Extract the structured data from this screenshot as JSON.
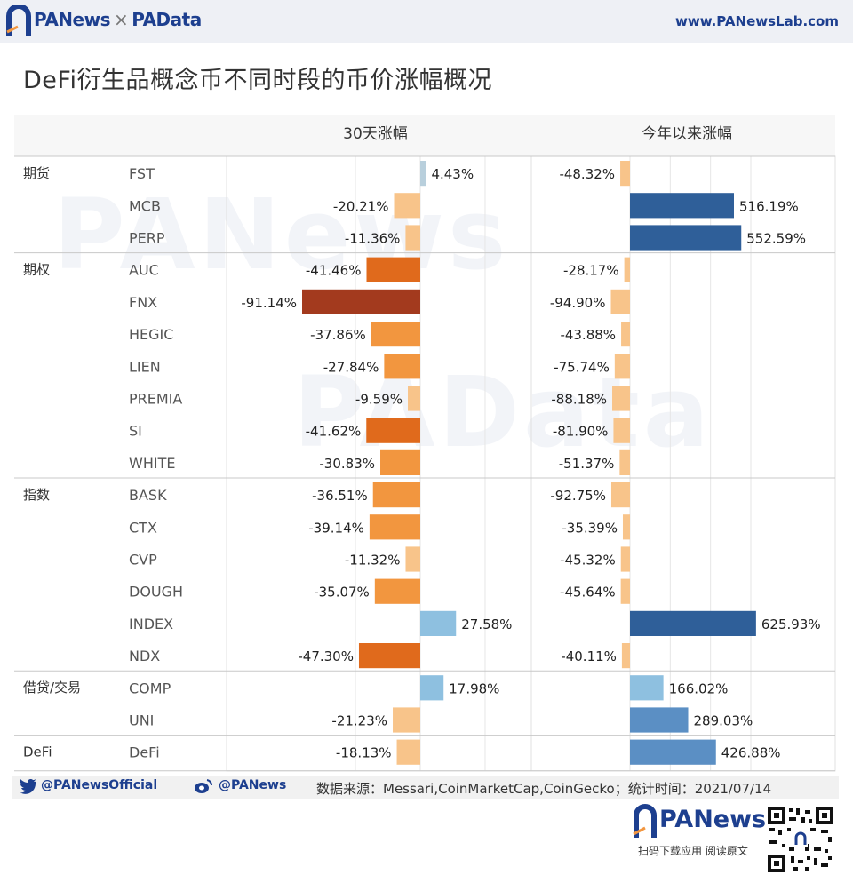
{
  "header": {
    "brand_left": "PANews",
    "brand_sep": "×",
    "brand_right": "PAData",
    "url": "www.PANewsLab.com"
  },
  "page_title": "DeFi衍生品概念币不同时段的币价涨幅概况",
  "chart_data": {
    "type": "bar",
    "orientation": "horizontal",
    "column_headers": [
      "30天涨幅",
      "今年以来涨幅"
    ],
    "groups": [
      {
        "name": "期货",
        "items": [
          {
            "token": "FST",
            "d30": 4.43,
            "ytd": -48.32
          },
          {
            "token": "MCB",
            "d30": -20.21,
            "ytd": 516.19
          },
          {
            "token": "PERP",
            "d30": -11.36,
            "ytd": 552.59
          }
        ]
      },
      {
        "name": "期权",
        "items": [
          {
            "token": "AUC",
            "d30": -41.46,
            "ytd": -28.17
          },
          {
            "token": "FNX",
            "d30": -91.14,
            "ytd": -94.9
          },
          {
            "token": "HEGIC",
            "d30": -37.86,
            "ytd": -43.88
          },
          {
            "token": "LIEN",
            "d30": -27.84,
            "ytd": -75.74
          },
          {
            "token": "PREMIA",
            "d30": -9.59,
            "ytd": -88.18
          },
          {
            "token": "SI",
            "d30": -41.62,
            "ytd": -81.9
          },
          {
            "token": "WHITE",
            "d30": -30.83,
            "ytd": -51.37
          }
        ]
      },
      {
        "name": "指数",
        "items": [
          {
            "token": "BASK",
            "d30": -36.51,
            "ytd": -92.75
          },
          {
            "token": "CTX",
            "d30": -39.14,
            "ytd": -35.39
          },
          {
            "token": "CVP",
            "d30": -11.32,
            "ytd": -45.32
          },
          {
            "token": "DOUGH",
            "d30": -35.07,
            "ytd": -45.64
          },
          {
            "token": "INDEX",
            "d30": 27.58,
            "ytd": 625.93
          },
          {
            "token": "NDX",
            "d30": -47.3,
            "ytd": -40.11
          }
        ]
      },
      {
        "name": "借贷/交易",
        "items": [
          {
            "token": "COMP",
            "d30": 17.98,
            "ytd": 166.02
          },
          {
            "token": "UNI",
            "d30": -21.23,
            "ytd": 289.03
          }
        ]
      },
      {
        "name": "DeFi",
        "items": [
          {
            "token": "DeFi",
            "d30": -18.13,
            "ytd": 426.88
          }
        ]
      }
    ],
    "d30_range": [
      -100,
      60
    ],
    "ytd_range": [
      -100,
      700
    ],
    "colors": {
      "neg_light": "#f8c48a",
      "neg_mid": "#f2963f",
      "neg_dark": "#e06a1c",
      "neg_deepest": "#a33a1e",
      "pos_light": "#8ec0e0",
      "pos_mid": "#5b8fc4",
      "pos_dark": "#2f5f99",
      "pos_small": "#b8cfdc"
    }
  },
  "footer": {
    "twitter": "@PANewsOfficial",
    "weibo": "@PANews",
    "source": "数据来源：Messari,CoinMarketCap,CoinGecko；统计时间：2021/07/14"
  },
  "bottom_brand": {
    "name": "PANews",
    "caption": "扫码下载应用  阅读原文"
  },
  "watermarks": [
    "PANews",
    "PAData"
  ]
}
